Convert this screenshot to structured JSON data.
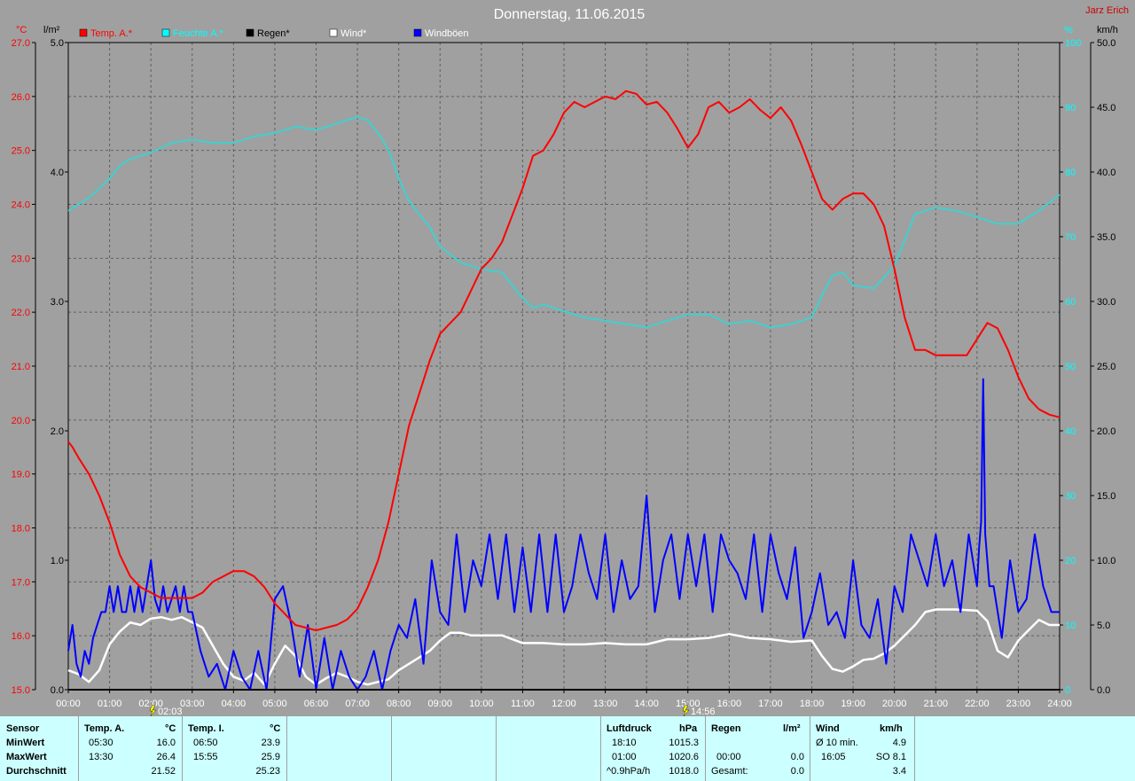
{
  "title": "Donnerstag, 11.06.2015",
  "author": "Jarz Erich",
  "axes": {
    "left1_unit": "°C",
    "left2_unit": "l/m²",
    "right1_unit": "%",
    "right2_unit": "km/h",
    "temp_ticks": [
      "15.0",
      "16.0",
      "17.0",
      "18.0",
      "19.0",
      "20.0",
      "21.0",
      "22.0",
      "23.0",
      "24.0",
      "25.0",
      "26.0",
      "27.0"
    ],
    "rain_ticks": [
      "0.0",
      "1.0",
      "2.0",
      "3.0",
      "4.0",
      "5.0"
    ],
    "hum_ticks": [
      "0",
      "10",
      "20",
      "30",
      "40",
      "50",
      "60",
      "70",
      "80",
      "90",
      "100"
    ],
    "wind_ticks": [
      "0.0",
      "5.0",
      "10.0",
      "15.0",
      "20.0",
      "25.0",
      "30.0",
      "35.0",
      "40.0",
      "45.0",
      "50.0"
    ],
    "time_ticks": [
      "00:00",
      "01:00",
      "02:00",
      "03:00",
      "04:00",
      "05:00",
      "06:00",
      "07:00",
      "08:00",
      "09:00",
      "10:00",
      "11:00",
      "12:00",
      "13:00",
      "14:00",
      "15:00",
      "16:00",
      "17:00",
      "18:00",
      "19:00",
      "20:00",
      "21:00",
      "22:00",
      "23:00",
      "24:00"
    ],
    "marker1": "02:03",
    "marker2": "14:56"
  },
  "legend": [
    {
      "label": "Temp. A.*",
      "color": "#ff0000",
      "text_color": "#ff0000"
    },
    {
      "label": "Feuchte A.*",
      "color": "#00ffff",
      "text_color": "#00ffff"
    },
    {
      "label": "Regen*",
      "color": "#000000",
      "text_color": "#000000"
    },
    {
      "label": "Wind*",
      "color": "#ffffff",
      "text_color": "#ffffff"
    },
    {
      "label": "Windböen",
      "color": "#0000ff",
      "text_color": "#ffffff"
    }
  ],
  "colors": {
    "temp": "#ff0000",
    "humidity": "#40d0d0",
    "rain": "#000000",
    "wind": "#ffffff",
    "gust": "#0000ff",
    "plot_bg": "#a0a0a0",
    "grid": "#606060",
    "stats_bg": "#ccffff"
  },
  "chart_data": {
    "type": "line",
    "title": "Donnerstag, 11.06.2015",
    "x_unit": "hours",
    "xlim": [
      0,
      24
    ],
    "temp_lim": [
      15,
      27
    ],
    "rain_lim": [
      0,
      5
    ],
    "hum_lim": [
      0,
      100
    ],
    "wind_lim": [
      0,
      50
    ],
    "grid": true,
    "legend_position": "top",
    "series": [
      {
        "name": "Temp. A.*",
        "axis": "temp",
        "x": [
          0,
          0.1,
          0.25,
          0.5,
          0.75,
          1,
          1.25,
          1.5,
          1.75,
          2,
          2.25,
          2.5,
          2.75,
          3,
          3.25,
          3.5,
          3.75,
          4,
          4.25,
          4.5,
          4.75,
          5,
          5.25,
          5.5,
          5.75,
          6,
          6.25,
          6.5,
          6.75,
          7,
          7.25,
          7.5,
          7.75,
          8,
          8.25,
          8.5,
          8.75,
          9,
          9.25,
          9.5,
          9.75,
          10,
          10.25,
          10.5,
          10.75,
          11,
          11.25,
          11.5,
          11.75,
          12,
          12.25,
          12.5,
          12.75,
          13,
          13.25,
          13.5,
          13.75,
          14,
          14.25,
          14.5,
          14.75,
          15,
          15.25,
          15.5,
          15.75,
          16,
          16.25,
          16.5,
          16.75,
          17,
          17.25,
          17.5,
          17.75,
          18,
          18.25,
          18.5,
          18.75,
          19,
          19.25,
          19.5,
          19.75,
          20,
          20.25,
          20.5,
          20.75,
          21,
          21.25,
          21.5,
          21.75,
          22,
          22.25,
          22.5,
          22.75,
          23,
          23.25,
          23.5,
          23.75,
          24
        ],
        "values": [
          19.6,
          19.5,
          19.3,
          19.0,
          18.6,
          18.1,
          17.5,
          17.1,
          16.9,
          16.8,
          16.7,
          16.7,
          16.7,
          16.7,
          16.8,
          17.0,
          17.1,
          17.2,
          17.2,
          17.1,
          16.9,
          16.6,
          16.4,
          16.2,
          16.15,
          16.1,
          16.15,
          16.2,
          16.3,
          16.5,
          16.9,
          17.4,
          18.1,
          19.0,
          19.9,
          20.5,
          21.1,
          21.6,
          21.8,
          22.0,
          22.4,
          22.8,
          23.0,
          23.3,
          23.8,
          24.3,
          24.9,
          25.0,
          25.3,
          25.7,
          25.9,
          25.8,
          25.9,
          26.0,
          25.95,
          26.1,
          26.05,
          25.85,
          25.9,
          25.7,
          25.4,
          25.05,
          25.3,
          25.8,
          25.9,
          25.7,
          25.8,
          25.95,
          25.75,
          25.6,
          25.8,
          25.55,
          25.1,
          24.6,
          24.1,
          23.9,
          24.1,
          24.2,
          24.2,
          24.0,
          23.6,
          22.8,
          21.9,
          21.3,
          21.3,
          21.2,
          21.2,
          21.2,
          21.2,
          21.5,
          21.8,
          21.7,
          21.3,
          20.8,
          20.4,
          20.2,
          20.1,
          20.05
        ]
      },
      {
        "name": "Feuchte A.*",
        "axis": "hum",
        "x": [
          0,
          0.5,
          1,
          1.25,
          1.5,
          1.75,
          2,
          2.5,
          3,
          3.5,
          4,
          4.5,
          5,
          5.5,
          6,
          6.5,
          7,
          7.25,
          7.5,
          7.75,
          8,
          8.25,
          8.5,
          8.75,
          9,
          9.5,
          10,
          10.5,
          11,
          11.25,
          11.5,
          12,
          12.5,
          13,
          13.5,
          14,
          14.5,
          15,
          15.5,
          16,
          16.5,
          17,
          17.5,
          18,
          18.25,
          18.5,
          18.75,
          19,
          19.5,
          20,
          20.5,
          21,
          21.5,
          22,
          22.5,
          23,
          23.5,
          24
        ],
        "values": [
          74,
          76,
          79,
          81,
          82,
          82.5,
          83,
          84.5,
          85,
          84.5,
          84.5,
          85.5,
          86,
          87,
          86.5,
          87.5,
          88.5,
          88,
          86,
          83.5,
          79,
          75.5,
          73.5,
          71.5,
          68.5,
          66,
          65,
          64.5,
          60.5,
          59,
          59.5,
          58.5,
          57.5,
          57,
          56.5,
          56,
          57,
          58,
          58,
          56.5,
          57,
          56,
          56.5,
          57.5,
          61,
          64,
          64.5,
          62.5,
          62,
          65.5,
          73.5,
          74.5,
          74,
          73,
          72,
          72,
          74,
          76.5
        ]
      },
      {
        "name": "Regen*",
        "axis": "rain",
        "x": [
          0,
          24
        ],
        "values": [
          0,
          0
        ]
      },
      {
        "name": "Wind*",
        "axis": "wind",
        "x": [
          0,
          0.25,
          0.5,
          0.75,
          1,
          1.25,
          1.5,
          1.75,
          2,
          2.25,
          2.5,
          2.75,
          3,
          3.25,
          3.5,
          3.75,
          4,
          4.25,
          4.5,
          4.75,
          5,
          5.25,
          5.5,
          5.75,
          6,
          6.25,
          6.5,
          6.75,
          7,
          7.25,
          7.5,
          7.75,
          8,
          8.25,
          8.5,
          8.75,
          9,
          9.25,
          9.5,
          9.75,
          10,
          10.5,
          11,
          11.5,
          12,
          12.5,
          13,
          13.5,
          14,
          14.5,
          15,
          15.5,
          16,
          16.5,
          17,
          17.5,
          18,
          18.25,
          18.5,
          18.75,
          19,
          19.25,
          19.5,
          19.75,
          20,
          20.25,
          20.5,
          20.75,
          21,
          21.5,
          22,
          22.25,
          22.5,
          22.75,
          23,
          23.25,
          23.5,
          23.75,
          24
        ],
        "values": [
          1.5,
          1.2,
          0.6,
          1.5,
          3.5,
          4.5,
          5.2,
          5.0,
          5.5,
          5.6,
          5.4,
          5.6,
          5.2,
          4.8,
          3.4,
          2.0,
          1.0,
          0.7,
          1.3,
          0.4,
          2.0,
          3.4,
          2.6,
          1.0,
          0.4,
          0.9,
          1.3,
          1.0,
          0.6,
          0.4,
          0.6,
          0.8,
          1.5,
          2.0,
          2.5,
          3.0,
          3.8,
          4.4,
          4.4,
          4.2,
          4.2,
          4.2,
          3.6,
          3.6,
          3.5,
          3.5,
          3.6,
          3.5,
          3.5,
          3.9,
          3.9,
          4.0,
          4.3,
          4.0,
          3.9,
          3.7,
          3.8,
          2.6,
          1.6,
          1.4,
          1.8,
          2.3,
          2.4,
          2.8,
          3.4,
          4.2,
          5.0,
          6.0,
          6.2,
          6.2,
          6.1,
          5.3,
          3.0,
          2.5,
          3.8,
          4.6,
          5.4,
          5.0,
          5.0
        ]
      },
      {
        "name": "Windböen",
        "axis": "wind",
        "x": [
          0,
          0.1,
          0.2,
          0.3,
          0.4,
          0.5,
          0.6,
          0.7,
          0.8,
          0.9,
          1.0,
          1.1,
          1.2,
          1.3,
          1.4,
          1.5,
          1.6,
          1.7,
          1.8,
          1.9,
          2.0,
          2.1,
          2.2,
          2.3,
          2.4,
          2.5,
          2.6,
          2.7,
          2.8,
          2.9,
          3.0,
          3.2,
          3.4,
          3.6,
          3.8,
          4.0,
          4.2,
          4.4,
          4.6,
          4.8,
          5.0,
          5.2,
          5.4,
          5.6,
          5.8,
          6.0,
          6.2,
          6.4,
          6.6,
          6.8,
          7.0,
          7.2,
          7.4,
          7.6,
          7.8,
          8.0,
          8.2,
          8.4,
          8.6,
          8.8,
          9.0,
          9.2,
          9.4,
          9.6,
          9.8,
          10.0,
          10.2,
          10.4,
          10.6,
          10.8,
          11.0,
          11.2,
          11.4,
          11.6,
          11.8,
          12.0,
          12.2,
          12.4,
          12.6,
          12.8,
          13.0,
          13.2,
          13.4,
          13.6,
          13.8,
          14.0,
          14.2,
          14.4,
          14.6,
          14.8,
          15.0,
          15.2,
          15.4,
          15.6,
          15.8,
          16.0,
          16.2,
          16.4,
          16.6,
          16.8,
          17.0,
          17.2,
          17.4,
          17.6,
          17.8,
          18.0,
          18.2,
          18.4,
          18.6,
          18.8,
          19.0,
          19.2,
          19.4,
          19.6,
          19.8,
          20.0,
          20.2,
          20.4,
          20.6,
          20.8,
          21.0,
          21.2,
          21.4,
          21.6,
          21.8,
          22.0,
          22.05,
          22.1,
          22.15,
          22.2,
          22.3,
          22.4,
          22.6,
          22.8,
          23.0,
          23.2,
          23.4,
          23.6,
          23.8,
          24.0
        ],
        "values": [
          3,
          5,
          2,
          1,
          3,
          2,
          4,
          5,
          6,
          6,
          8,
          6,
          8,
          6,
          6,
          8,
          6,
          8,
          6,
          8,
          10,
          7,
          6,
          8,
          6,
          7,
          8,
          6,
          8,
          6,
          6,
          3,
          1,
          2,
          0,
          3,
          1,
          0,
          3,
          0,
          7,
          8,
          5,
          1,
          5,
          0,
          4,
          0,
          3,
          1,
          0,
          1,
          3,
          0,
          3,
          5,
          4,
          7,
          2,
          10,
          6,
          5,
          12,
          6,
          10,
          8,
          12,
          7,
          12,
          6,
          11,
          6,
          12,
          6,
          12,
          6,
          8,
          12,
          9,
          7,
          12,
          6,
          10,
          7,
          8,
          15,
          6,
          10,
          12,
          7,
          12,
          8,
          12,
          6,
          12,
          10,
          9,
          7,
          12,
          6,
          12,
          9,
          7,
          11,
          4,
          6,
          9,
          5,
          6,
          4,
          10,
          5,
          4,
          7,
          2,
          8,
          6,
          12,
          10,
          8,
          12,
          8,
          10,
          6,
          12,
          8,
          11,
          13,
          24,
          12,
          8,
          8,
          4,
          10,
          6,
          7,
          12,
          8,
          6,
          6
        ]
      }
    ]
  },
  "stats": {
    "headers": {
      "sensor": "Sensor",
      "temp_a": "Temp. A.",
      "temp_a_unit": "°C",
      "temp_i": "Temp. I.",
      "temp_i_unit": "°C",
      "pressure": "Luftdruck",
      "pressure_unit": "hPa",
      "rain": "Regen",
      "rain_unit": "l/m²",
      "wind": "Wind",
      "wind_unit": "km/h"
    },
    "rows": [
      {
        "label": "MinWert",
        "ta_time": "05:30",
        "ta_val": "16.0",
        "ti_time": "06:50",
        "ti_val": "23.9",
        "p_time": "18:10",
        "p_val": "1015.3",
        "r_time": "",
        "r_val": "",
        "w_time": "Ø 10 min.",
        "w_val": "4.9"
      },
      {
        "label": "MaxWert",
        "ta_time": "13:30",
        "ta_val": "26.4",
        "ti_time": "15:55",
        "ti_val": "25.9",
        "p_time": "01:00",
        "p_val": "1020.6",
        "r_time": "00:00",
        "r_val": "0.0",
        "w_time": "16:05",
        "w_val": "SO 8.1"
      },
      {
        "label": "Durchschnitt",
        "ta_time": "",
        "ta_val": "21.52",
        "ti_time": "",
        "ti_val": "25.23",
        "p_time": "^0.9hPa/h",
        "p_val": "1018.0",
        "r_time": "Gesamt:",
        "r_val": "0.0",
        "w_time": "",
        "w_val": "3.4"
      }
    ]
  }
}
